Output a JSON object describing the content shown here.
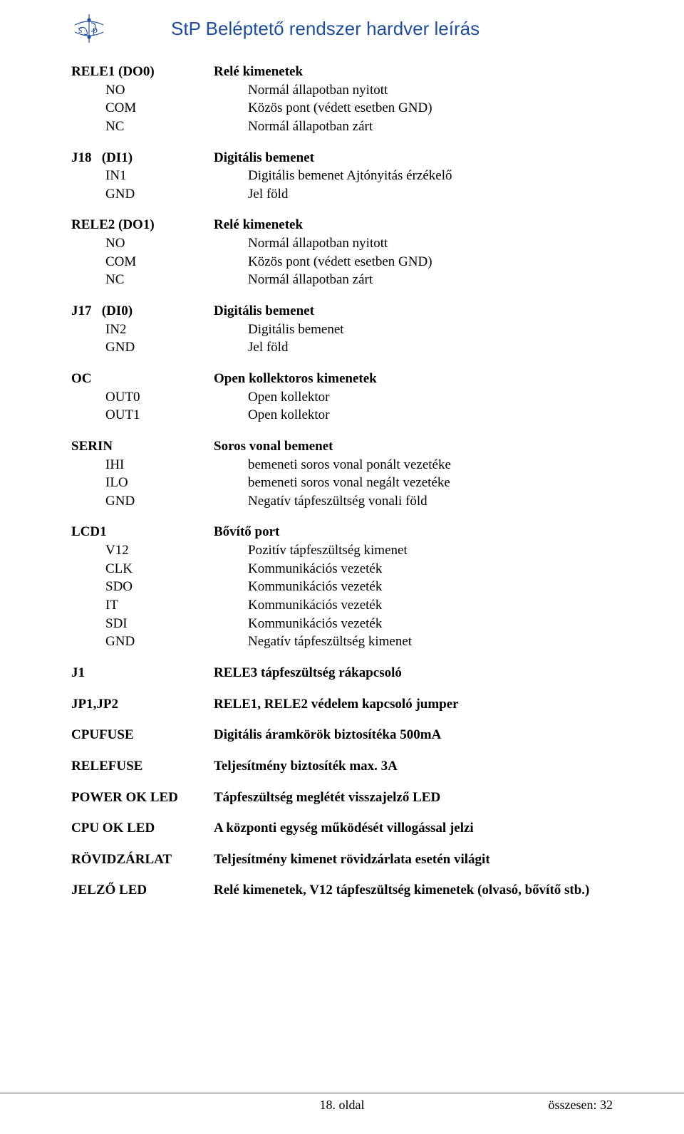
{
  "header": {
    "title": "StP Beléptető rendszer hardver leírás",
    "title_color": "#1f4e9c",
    "logo_color": "#1f4e9c"
  },
  "blocks": [
    {
      "head": {
        "l": "RELE1 (DO0)",
        "r": "Relé kimenetek",
        "lb": true,
        "rb": true
      },
      "items": [
        {
          "l": "NO",
          "r": "Normál állapotban nyitott"
        },
        {
          "l": "COM",
          "r": "Közös pont (védett esetben GND)"
        },
        {
          "l": "NC",
          "r": "Normál állapotban zárt"
        }
      ]
    },
    {
      "head": {
        "l": "J18   (DI1)",
        "r": "Digitális bemenet",
        "lb": true,
        "rb": true
      },
      "items": [
        {
          "l": "IN1",
          "r": "Digitális bemenet Ajtónyitás érzékelő"
        },
        {
          "l": "GND",
          "r": "Jel föld"
        }
      ]
    },
    {
      "head": {
        "l": "RELE2 (DO1)",
        "r": "Relé kimenetek",
        "lb": true,
        "rb": true
      },
      "items": [
        {
          "l": "NO",
          "r": "Normál állapotban nyitott"
        },
        {
          "l": "COM",
          "r": "Közös pont (védett esetben GND)"
        },
        {
          "l": "NC",
          "r": "Normál állapotban zárt"
        }
      ]
    },
    {
      "head": {
        "l": "J17   (DI0)",
        "r": "Digitális bemenet",
        "lb": true,
        "rb": true
      },
      "items": [
        {
          "l": "IN2",
          "r": "Digitális bemenet"
        },
        {
          "l": "GND",
          "r": "Jel föld"
        }
      ]
    },
    {
      "head": {
        "l": "OC",
        "r": "Open kollektoros kimenetek",
        "lb": true,
        "rb": true
      },
      "items": [
        {
          "l": "OUT0",
          "r": "Open kollektor"
        },
        {
          "l": "OUT1",
          "r": "Open kollektor"
        }
      ]
    },
    {
      "head": {
        "l": "SERIN",
        "r": "Soros vonal bemenet",
        "lb": true,
        "rb": true
      },
      "items": [
        {
          "l": "IHI",
          "r": "bemeneti soros vonal ponált vezetéke"
        },
        {
          "l": "ILO",
          "r": "bemeneti soros vonal negált vezetéke"
        },
        {
          "l": "GND",
          "r": "Negatív tápfeszültség vonali föld"
        }
      ]
    },
    {
      "head": {
        "l": "LCD1",
        "r": "Bővítő port",
        "lb": true,
        "rb": true
      },
      "items": [
        {
          "l": "V12",
          "r": "Pozitív tápfeszültség kimenet"
        },
        {
          "l": "CLK",
          "r": "Kommunikációs vezeték"
        },
        {
          "l": "SDO",
          "r": "Kommunikációs vezeték"
        },
        {
          "l": "IT",
          "r": "Kommunikációs vezeték"
        },
        {
          "l": "SDI",
          "r": "Kommunikációs vezeték"
        },
        {
          "l": "GND",
          "r": "Negatív tápfeszültség kimenet"
        }
      ]
    },
    {
      "head": {
        "l": "J1",
        "r": "RELE3 tápfeszültség rákapcsoló",
        "lb": true,
        "rb": true
      },
      "items": []
    },
    {
      "head": {
        "l": "JP1,JP2",
        "r": "RELE1, RELE2 védelem kapcsoló jumper",
        "lb": true,
        "rb": true
      },
      "items": []
    },
    {
      "head": {
        "l": "CPUFUSE",
        "r": "Digitális áramkörök biztosítéka 500mA",
        "lb": true,
        "rb": true
      },
      "items": []
    },
    {
      "head": {
        "l": "RELEFUSE",
        "r": "Teljesítmény biztosíték max. 3A",
        "lb": true,
        "rb": true
      },
      "items": []
    },
    {
      "head": {
        "l": "POWER OK LED",
        "r": "Tápfeszültség meglétét visszajelző LED",
        "lb": true,
        "rb": true
      },
      "items": []
    },
    {
      "head": {
        "l": "CPU OK LED",
        "r": "A központi egység működését villogással jelzi",
        "lb": true,
        "rb": true
      },
      "items": []
    },
    {
      "head": {
        "l": "RÖVIDZÁRLAT",
        "r": "Teljesítmény kimenet rövidzárlata esetén világit",
        "lb": true,
        "rb": true
      },
      "items": []
    },
    {
      "head": {
        "l": "JELZŐ LED",
        "r": "Relé kimenetek, V12 tápfeszültség kimenetek (olvasó, bővítő stb.)",
        "lb": true,
        "rb": true
      },
      "items": []
    }
  ],
  "footer": {
    "center": "18. oldal",
    "right": "összesen: 32"
  }
}
